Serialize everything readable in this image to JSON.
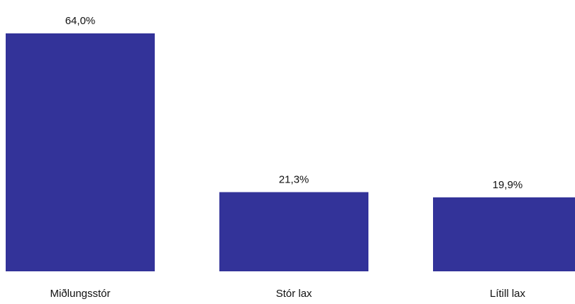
{
  "chart_data": {
    "type": "bar",
    "categories": [
      "Miðlungsstór",
      "Stór lax",
      "Lítill lax"
    ],
    "values": [
      64.0,
      21.3,
      19.9
    ],
    "value_labels": [
      "64,0%",
      "21,3%",
      "19,9%"
    ],
    "title": "",
    "xlabel": "",
    "ylabel": "",
    "ylim": [
      0,
      64.0
    ],
    "grid": false,
    "legend": "none",
    "bar_color": "#333399"
  }
}
